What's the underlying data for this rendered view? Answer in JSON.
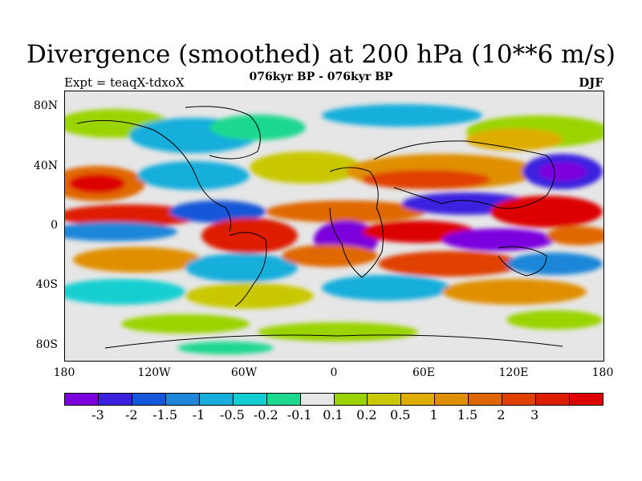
{
  "title": "Divergence (smoothed) at 200 hPa (10**6 m/s)",
  "subtitle": "076kyr BP - 076kyr BP",
  "left_label": "Expt = teaqX-tdxoX",
  "right_label": "DJF",
  "y_axis": {
    "labels": [
      "80N",
      "40N",
      "0",
      "40S",
      "80S"
    ]
  },
  "x_axis": {
    "labels": [
      "180",
      "120W",
      "60W",
      "0",
      "60E",
      "120E",
      "180"
    ]
  },
  "colorbar": {
    "colors": [
      "#7b00dd",
      "#3a22e0",
      "#1457d8",
      "#1f86d8",
      "#17aedb",
      "#13cfd1",
      "#1fd88f",
      "#e6e6e6",
      "#9ad400",
      "#c9c800",
      "#dfac00",
      "#e08f00",
      "#e06700",
      "#e04000",
      "#dd1e00",
      "#dd0000"
    ],
    "labels": [
      "-3",
      "-2",
      "-1.5",
      "-1",
      "-0.5",
      "-0.2",
      "-0.1",
      "0.1",
      "0.2",
      "0.5",
      "1",
      "1.5",
      "2",
      "3"
    ]
  }
}
